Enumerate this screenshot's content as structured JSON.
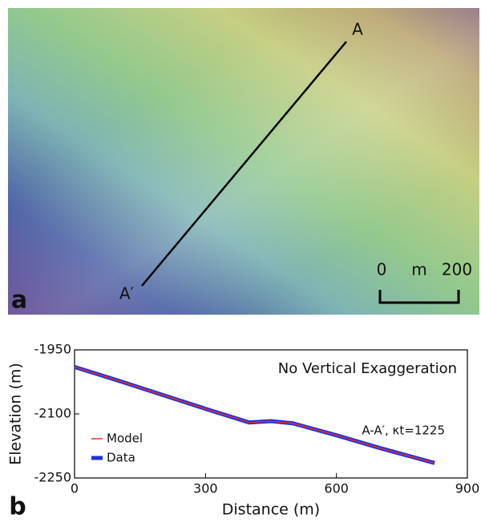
{
  "map": {
    "panel_label": "a",
    "point_start": "A",
    "point_end": "A′",
    "scale_bar": {
      "start": "0",
      "unit": "m",
      "end": "200"
    }
  },
  "chart_data": {
    "type": "line",
    "panel_label": "b",
    "annotations": [
      "No Vertical Exaggeration",
      "A-A′, κt=1225"
    ],
    "x_label": "Distance (m)",
    "y_label": "Elevation (m)",
    "x": [
      0,
      100,
      200,
      300,
      400,
      450,
      500,
      600,
      700,
      825
    ],
    "series": [
      {
        "name": "Model",
        "color": "#e03030",
        "values": [
          -1990,
          -2022,
          -2055,
          -2088,
          -2120,
          -2117,
          -2122,
          -2150,
          -2180,
          -2215
        ]
      },
      {
        "name": "Data",
        "color": "#1f2fe0",
        "values": [
          -1990,
          -2022,
          -2055,
          -2088,
          -2120,
          -2117,
          -2122,
          -2150,
          -2180,
          -2215
        ]
      }
    ],
    "xlim": [
      0,
      900
    ],
    "xticks": [
      0,
      300,
      600,
      900
    ],
    "ylim": [
      -2250,
      -1950
    ],
    "yticks": [
      -1950,
      -2100,
      -2250
    ]
  }
}
